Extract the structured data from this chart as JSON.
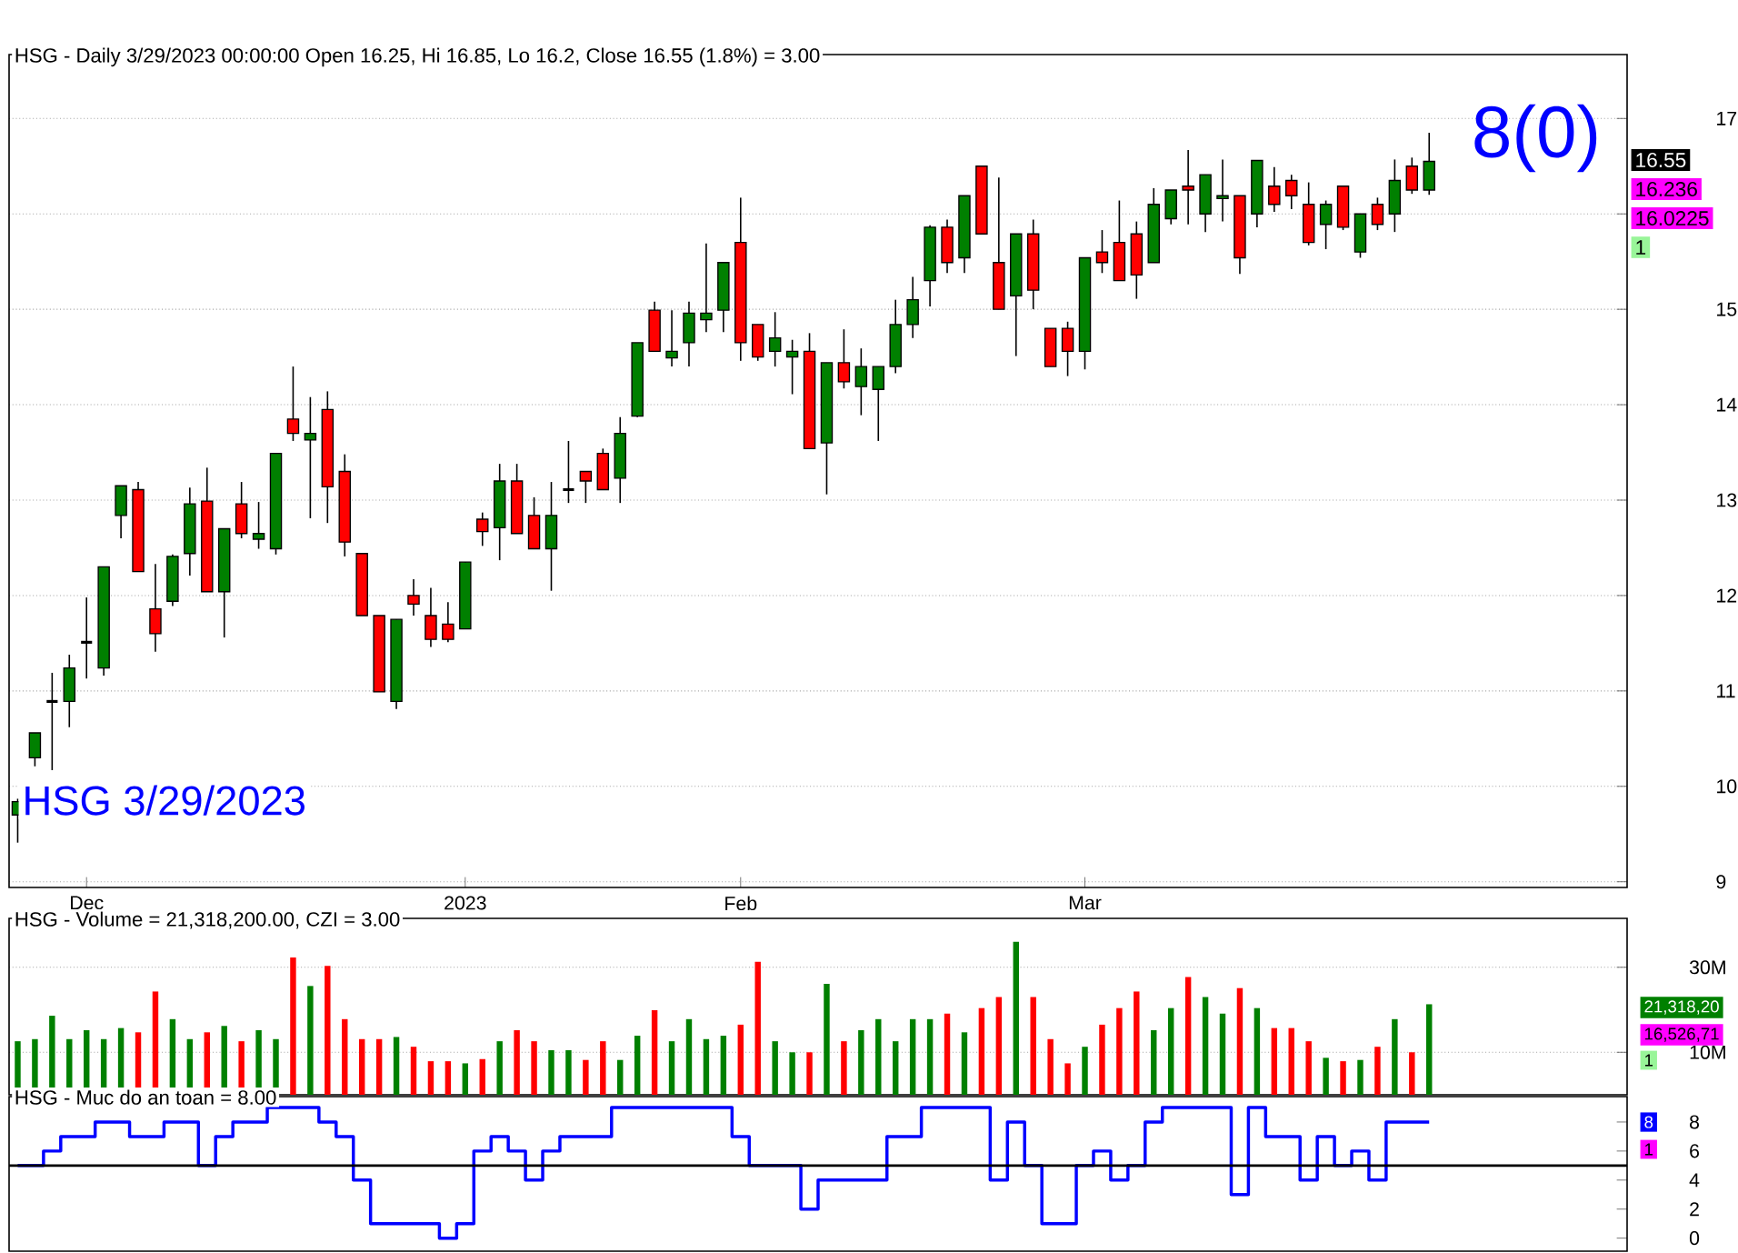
{
  "chart_data": [
    {
      "type": "candlestick",
      "title": "HSG - Daily 3/29/2023 00:00:00 Open 16.25, Hi 16.85, Lo 16.2, Close 16.55 (1.8%)  = 3.00",
      "categories": [
        null,
        null,
        null,
        null,
        "Dec",
        null,
        null,
        null,
        null,
        null,
        null,
        null,
        null,
        null,
        null,
        null,
        null,
        null,
        null,
        null,
        null,
        null,
        null,
        null,
        null,
        null,
        "2023",
        null,
        null,
        null,
        null,
        null,
        null,
        null,
        null,
        null,
        null,
        null,
        null,
        null,
        null,
        null,
        "Feb",
        null,
        null,
        null,
        null,
        null,
        null,
        null,
        null,
        null,
        null,
        null,
        null,
        null,
        null,
        null,
        null,
        null,
        null,
        null,
        "Mar",
        null,
        null,
        null,
        null,
        null,
        null,
        null,
        null,
        null,
        null,
        null,
        null,
        null,
        null,
        null,
        null,
        null,
        null,
        null,
        null,
        null,
        null,
        null,
        null,
        null,
        null,
        null,
        null,
        null,
        null,
        null
      ],
      "ohlc": [
        [
          9.7,
          9.87,
          9.41,
          9.84
        ],
        [
          10.3,
          10.56,
          10.21,
          10.56
        ],
        [
          10.89,
          11.19,
          10.17,
          10.89
        ],
        [
          10.89,
          11.38,
          10.62,
          11.24
        ],
        [
          11.51,
          11.98,
          11.13,
          11.51
        ],
        [
          11.24,
          12.3,
          11.16,
          12.3
        ],
        [
          12.84,
          13.15,
          12.6,
          13.15
        ],
        [
          13.11,
          13.19,
          12.25,
          12.25
        ],
        [
          11.86,
          12.33,
          11.41,
          11.6
        ],
        [
          11.94,
          12.43,
          11.89,
          12.41
        ],
        [
          12.44,
          13.13,
          12.21,
          12.96
        ],
        [
          12.99,
          13.34,
          12.04,
          12.04
        ],
        [
          12.04,
          12.7,
          11.56,
          12.7
        ],
        [
          12.96,
          13.19,
          12.6,
          12.65
        ],
        [
          12.59,
          12.98,
          12.49,
          12.65
        ],
        [
          12.49,
          13.49,
          12.43,
          13.49
        ],
        [
          13.85,
          14.4,
          13.62,
          13.7
        ],
        [
          13.63,
          14.08,
          12.81,
          13.7
        ],
        [
          13.95,
          14.14,
          12.76,
          13.14
        ],
        [
          13.3,
          13.48,
          12.41,
          12.56
        ],
        [
          12.44,
          12.44,
          11.79,
          11.79
        ],
        [
          11.79,
          11.79,
          10.99,
          10.99
        ],
        [
          10.89,
          11.75,
          10.81,
          11.75
        ],
        [
          12.0,
          12.17,
          11.79,
          11.91
        ],
        [
          11.79,
          12.08,
          11.46,
          11.54
        ],
        [
          11.7,
          11.93,
          11.51,
          11.54
        ],
        [
          11.65,
          12.35,
          11.65,
          12.35
        ],
        [
          12.8,
          12.87,
          12.52,
          12.67
        ],
        [
          12.71,
          13.38,
          12.37,
          13.2
        ],
        [
          13.2,
          13.38,
          12.65,
          12.65
        ],
        [
          12.84,
          13.03,
          12.49,
          12.49
        ],
        [
          12.49,
          13.19,
          12.05,
          12.84
        ],
        [
          13.11,
          13.62,
          12.97,
          13.11
        ],
        [
          13.3,
          13.3,
          12.97,
          13.2
        ],
        [
          13.49,
          13.54,
          13.11,
          13.11
        ],
        [
          13.23,
          13.87,
          12.97,
          13.7
        ],
        [
          13.88,
          14.65,
          13.87,
          14.65
        ],
        [
          14.99,
          15.08,
          14.56,
          14.56
        ],
        [
          14.49,
          14.99,
          14.4,
          14.56
        ],
        [
          14.65,
          15.08,
          14.4,
          14.96
        ],
        [
          14.89,
          15.69,
          14.76,
          14.96
        ],
        [
          14.99,
          15.49,
          14.76,
          15.49
        ],
        [
          15.7,
          16.17,
          14.46,
          14.65
        ],
        [
          14.84,
          14.84,
          14.46,
          14.5
        ],
        [
          14.56,
          14.97,
          14.4,
          14.7
        ],
        [
          14.5,
          14.68,
          14.11,
          14.56
        ],
        [
          14.56,
          14.75,
          13.54,
          13.54
        ],
        [
          13.6,
          14.44,
          13.06,
          14.44
        ],
        [
          14.44,
          14.79,
          14.17,
          14.24
        ],
        [
          14.19,
          14.59,
          13.89,
          14.4
        ],
        [
          14.16,
          14.4,
          13.62,
          14.4
        ],
        [
          14.4,
          15.1,
          14.33,
          14.84
        ],
        [
          14.84,
          15.34,
          14.7,
          15.1
        ],
        [
          15.3,
          15.88,
          15.03,
          15.86
        ],
        [
          15.86,
          15.94,
          15.38,
          15.49
        ],
        [
          15.54,
          16.19,
          15.38,
          16.19
        ],
        [
          16.5,
          16.5,
          15.79,
          15.79
        ],
        [
          15.49,
          16.38,
          15.0,
          15.0
        ],
        [
          15.14,
          15.79,
          14.51,
          15.79
        ],
        [
          15.79,
          15.94,
          15.0,
          15.2
        ],
        [
          14.8,
          14.8,
          14.4,
          14.4
        ],
        [
          14.8,
          14.87,
          14.3,
          14.56
        ],
        [
          14.56,
          15.54,
          14.37,
          15.54
        ],
        [
          15.6,
          15.83,
          15.38,
          15.49
        ],
        [
          15.7,
          16.14,
          15.3,
          15.3
        ],
        [
          15.79,
          15.92,
          15.11,
          15.36
        ],
        [
          15.49,
          16.27,
          15.49,
          16.1
        ],
        [
          15.95,
          16.25,
          15.89,
          16.25
        ],
        [
          16.29,
          16.67,
          15.89,
          16.25
        ],
        [
          16.0,
          16.41,
          15.81,
          16.41
        ],
        [
          16.16,
          16.57,
          15.92,
          16.19
        ],
        [
          16.19,
          16.19,
          15.37,
          15.54
        ],
        [
          16.0,
          16.56,
          15.86,
          16.56
        ],
        [
          16.29,
          16.49,
          16.02,
          16.1
        ],
        [
          16.35,
          16.41,
          16.05,
          16.19
        ],
        [
          16.1,
          16.33,
          15.67,
          15.7
        ],
        [
          15.89,
          16.14,
          15.63,
          16.1
        ],
        [
          16.29,
          16.29,
          15.83,
          15.86
        ],
        [
          15.6,
          16.0,
          15.54,
          16.0
        ],
        [
          16.1,
          16.17,
          15.83,
          15.89
        ],
        [
          16.0,
          16.57,
          15.81,
          16.35
        ],
        [
          16.5,
          16.59,
          16.21,
          16.25
        ],
        [
          16.25,
          16.85,
          16.2,
          16.55
        ],
        null,
        null,
        null,
        null,
        null,
        null,
        null,
        null,
        null,
        null,
        null
      ],
      "colors": [
        "#008000",
        "#008000",
        "#000000",
        "#008000",
        "#000000",
        "#008000",
        "#008000",
        "#ff0000",
        "#ff0000",
        "#008000",
        "#008000",
        "#ff0000",
        "#008000",
        "#ff0000",
        "#008000",
        "#008000",
        "#ff0000",
        "#008000",
        "#ff0000",
        "#ff0000",
        "#ff0000",
        "#ff0000",
        "#008000",
        "#ff0000",
        "#ff0000",
        "#ff0000",
        "#008000",
        "#ff0000",
        "#008000",
        "#ff0000",
        "#ff0000",
        "#008000",
        "#000000",
        "#ff0000",
        "#ff0000",
        "#008000",
        "#008000",
        "#ff0000",
        "#008000",
        "#008000",
        "#008000",
        "#008000",
        "#ff0000",
        "#ff0000",
        "#008000",
        "#008000",
        "#ff0000",
        "#008000",
        "#ff0000",
        "#008000",
        "#008000",
        "#008000",
        "#008000",
        "#008000",
        "#ff0000",
        "#008000",
        "#ff0000",
        "#ff0000",
        "#008000",
        "#ff0000",
        "#ff0000",
        "#ff0000",
        "#008000",
        "#ff0000",
        "#ff0000",
        "#ff0000",
        "#008000",
        "#008000",
        "#ff0000",
        "#008000",
        "#008000",
        "#ff0000",
        "#008000",
        "#ff0000",
        "#ff0000",
        "#ff0000",
        "#008000",
        "#ff0000",
        "#008000",
        "#ff0000",
        "#008000",
        "#ff0000",
        "#008000",
        null,
        null,
        null,
        null,
        null,
        null,
        null,
        null,
        null,
        null,
        null
      ],
      "ylim": [
        8.94,
        17.67
      ],
      "yticks": [
        9,
        10,
        11,
        12,
        13,
        14,
        15,
        {
          "value": 16,
          "label": null
        },
        17
      ],
      "grid": "y",
      "annotations": [
        "8(0)",
        "16.55",
        "16.236",
        "16.0225",
        "1",
        "HSG 3/29/2023"
      ]
    },
    {
      "type": "bar",
      "title": "HSG - Volume = 21,318,200.00, CZI = 3.00",
      "categories": [
        null,
        null,
        null,
        null,
        null,
        null,
        null,
        null,
        null,
        null,
        null,
        null,
        null,
        null,
        null,
        null,
        null,
        null,
        null,
        null,
        null,
        null,
        null,
        null,
        null,
        null,
        null,
        null,
        null,
        null,
        null,
        null,
        null,
        null,
        null,
        null,
        null,
        null,
        null,
        null,
        null,
        null,
        null,
        null,
        null,
        null,
        null,
        null,
        null,
        null,
        null,
        null,
        null,
        null,
        null,
        null,
        null,
        null,
        null,
        null,
        null,
        null,
        null,
        null,
        null,
        null,
        null,
        null,
        null,
        null,
        null,
        null,
        null,
        null,
        null,
        null,
        null,
        null,
        null,
        null,
        null,
        null,
        null,
        null,
        null,
        null,
        null,
        null,
        null,
        null,
        null,
        null,
        null,
        null
      ],
      "values": [
        12.6,
        13.1,
        18.6,
        13.1,
        15.2,
        13.1,
        15.7,
        14.7,
        24.3,
        17.8,
        13.1,
        14.7,
        16.2,
        12.6,
        15.2,
        13.1,
        32.3,
        25.6,
        30.3,
        17.8,
        13.1,
        13.1,
        13.6,
        11.3,
        7.9,
        7.9,
        7.4,
        8.4,
        12.6,
        15.2,
        12.6,
        10.5,
        10.5,
        8.2,
        12.6,
        8.2,
        13.9,
        19.9,
        12.6,
        17.8,
        13.1,
        13.9,
        16.5,
        31.3,
        12.6,
        10.0,
        10.0,
        26.1,
        12.6,
        15.2,
        17.8,
        12.6,
        17.8,
        17.8,
        19.1,
        14.7,
        20.4,
        23.0,
        36.0,
        23.0,
        13.1,
        7.4,
        11.3,
        16.5,
        20.4,
        24.3,
        15.2,
        20.4,
        27.7,
        23.0,
        19.1,
        25.1,
        20.4,
        15.7,
        15.7,
        12.6,
        8.7,
        7.9,
        8.2,
        11.3,
        17.8,
        10.0,
        21.3,
        null,
        null,
        null,
        null,
        null,
        null,
        null,
        null,
        null,
        null,
        null
      ],
      "colors": [
        "#008000",
        "#008000",
        "#008000",
        "#008000",
        "#008000",
        "#008000",
        "#008000",
        "#ff0000",
        "#ff0000",
        "#008000",
        "#008000",
        "#ff0000",
        "#008000",
        "#ff0000",
        "#008000",
        "#008000",
        "#ff0000",
        "#008000",
        "#ff0000",
        "#ff0000",
        "#ff0000",
        "#ff0000",
        "#008000",
        "#ff0000",
        "#ff0000",
        "#ff0000",
        "#008000",
        "#ff0000",
        "#008000",
        "#ff0000",
        "#ff0000",
        "#008000",
        "#008000",
        "#ff0000",
        "#ff0000",
        "#008000",
        "#008000",
        "#ff0000",
        "#008000",
        "#008000",
        "#008000",
        "#008000",
        "#ff0000",
        "#ff0000",
        "#008000",
        "#008000",
        "#ff0000",
        "#008000",
        "#ff0000",
        "#008000",
        "#008000",
        "#008000",
        "#008000",
        "#008000",
        "#ff0000",
        "#008000",
        "#ff0000",
        "#ff0000",
        "#008000",
        "#ff0000",
        "#ff0000",
        "#ff0000",
        "#008000",
        "#ff0000",
        "#ff0000",
        "#ff0000",
        "#008000",
        "#008000",
        "#ff0000",
        "#008000",
        "#008000",
        "#ff0000",
        "#008000",
        "#ff0000",
        "#ff0000",
        "#ff0000",
        "#008000",
        "#ff0000",
        "#008000",
        "#ff0000",
        "#008000",
        "#ff0000",
        "#008000",
        null,
        null,
        null,
        null,
        null,
        null,
        null,
        null,
        null,
        null,
        null
      ],
      "ylim": [
        0,
        41.5
      ],
      "yticks": [
        {
          "value": 10,
          "label": "10M"
        },
        {
          "value": 30,
          "label": "30M"
        }
      ],
      "grid": "y",
      "annotations": [
        "21,318,20",
        "16,526,71",
        "1"
      ]
    },
    {
      "type": "step",
      "title": "HSG - Muc do an toan = 8.00",
      "categories": [
        null,
        null,
        null,
        null,
        null,
        null,
        null,
        null,
        null,
        null,
        null,
        null,
        null,
        null,
        null,
        null,
        null,
        null,
        null,
        null,
        null,
        null,
        null,
        null,
        null,
        null,
        null,
        null,
        null,
        null,
        null,
        null,
        null,
        null,
        null,
        null,
        null,
        null,
        null,
        null,
        null,
        null,
        null,
        null,
        null,
        null,
        null,
        null,
        null,
        null,
        null,
        null,
        null,
        null,
        null,
        null,
        null,
        null,
        null,
        null,
        null,
        null,
        null,
        null,
        null,
        null,
        null,
        null,
        null,
        null,
        null,
        null,
        null,
        null,
        null,
        null,
        null,
        null,
        null,
        null,
        null,
        null,
        null,
        null,
        null,
        null,
        null,
        null,
        null,
        null,
        null,
        null,
        null,
        null
      ],
      "series": [
        {
          "color": "#0000ff",
          "values": [
            5,
            5,
            6,
            7,
            7,
            8,
            8,
            7,
            7,
            8,
            8,
            5,
            7,
            8,
            8,
            9,
            9,
            9,
            8,
            7,
            4,
            1,
            1,
            1,
            1,
            0,
            1,
            6,
            7,
            6,
            4,
            6,
            7,
            7,
            7,
            9,
            9,
            9,
            9,
            9,
            9,
            9,
            7,
            5,
            5,
            5,
            2,
            4,
            4,
            4,
            4,
            7,
            7,
            9,
            9,
            9,
            9,
            4,
            8,
            5,
            1,
            1,
            5,
            6,
            4,
            5,
            8,
            9,
            9,
            9,
            9,
            3,
            9,
            7,
            7,
            4,
            7,
            5,
            6,
            4,
            8,
            8,
            8,
            null,
            null,
            null,
            null,
            null,
            null,
            null,
            null,
            null,
            null,
            null
          ]
        }
      ],
      "ylim": [
        -0.9,
        9.75
      ],
      "yticks": [
        0,
        2,
        4,
        6,
        8
      ],
      "ref_lines": [
        {
          "axis": "y",
          "value": 5,
          "color": "#000000"
        }
      ],
      "annotations": [
        "8",
        "1"
      ]
    }
  ]
}
